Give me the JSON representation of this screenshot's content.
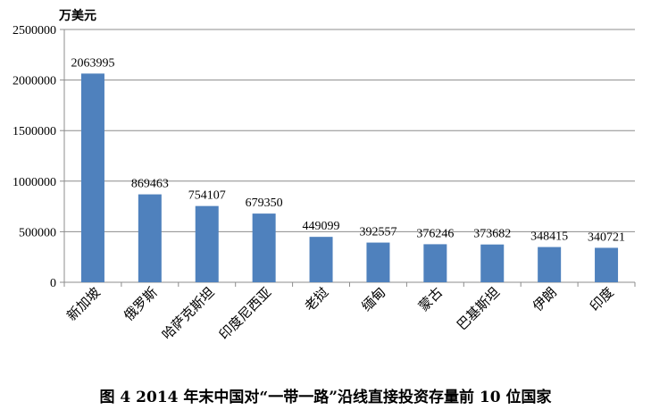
{
  "caption": "图 4    2014 年末中国对“一带一路”沿线直接投资存量前 10 位国家",
  "chart_data": {
    "type": "bar",
    "ylabel": "万美元",
    "ylim": [
      0,
      2500000
    ],
    "yticks": [
      0,
      500000,
      1000000,
      1500000,
      2000000,
      2500000
    ],
    "grid": true,
    "legend": "none",
    "bar_color": "#4f81bd",
    "categories": [
      "新加坡",
      "俄罗斯",
      "哈萨克斯坦",
      "印度尼西亚",
      "老挝",
      "缅甸",
      "蒙古",
      "巴基斯坦",
      "伊朗",
      "印度"
    ],
    "values": [
      2063995,
      869463,
      754107,
      679350,
      449099,
      392557,
      376246,
      373682,
      348415,
      340721
    ]
  }
}
